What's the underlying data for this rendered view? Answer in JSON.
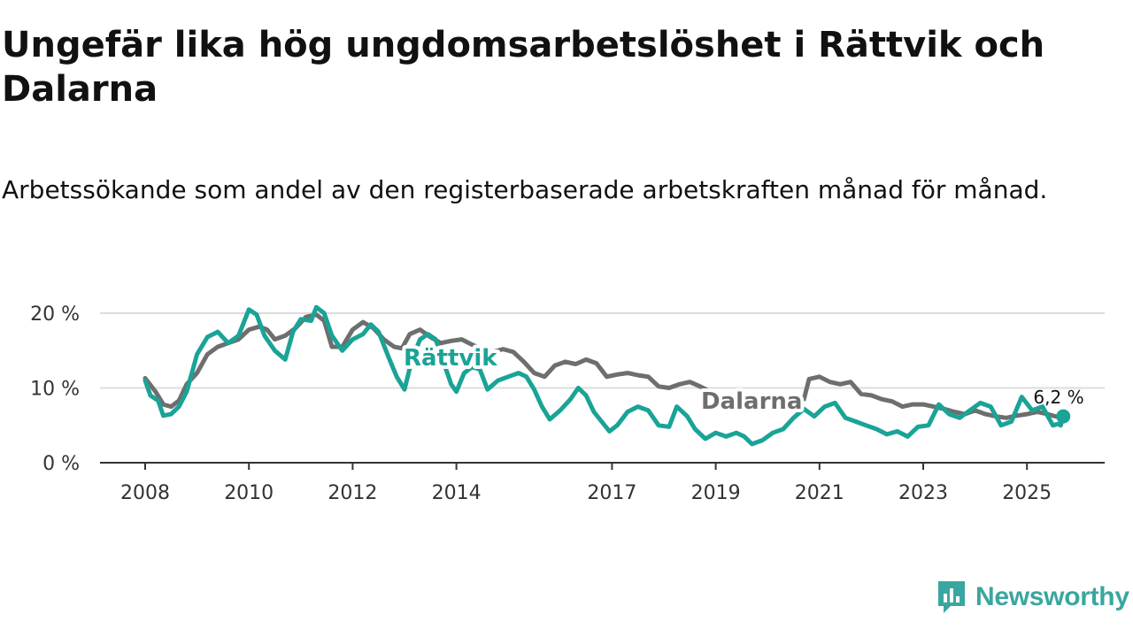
{
  "title": "Ungefär lika hög ungdomsarbetslöshet i Rättvik och Dalarna",
  "subtitle": "Arbetssökande som andel av den registerbaserade arbetskraften månad för månad.",
  "brand": {
    "name": "Newsworthy"
  },
  "colors": {
    "rattvik": "#1aa397",
    "dalarna": "#6e6e6e",
    "grid": "#dddddd",
    "axis": "#333333"
  },
  "chart_data": {
    "type": "line",
    "x_unit": "year",
    "xlim": [
      2008,
      2026.5
    ],
    "ylim": [
      0,
      20
    ],
    "y_ticks": [
      {
        "value": 0,
        "label": "0 %"
      },
      {
        "value": 10,
        "label": "10 %"
      },
      {
        "value": 20,
        "label": "20 %"
      }
    ],
    "x_ticks": [
      {
        "value": 2008,
        "label": "2008"
      },
      {
        "value": 2010,
        "label": "2010"
      },
      {
        "value": 2012,
        "label": "2012"
      },
      {
        "value": 2014,
        "label": "2014"
      },
      {
        "value": 2017,
        "label": "2017"
      },
      {
        "value": 2019,
        "label": "2019"
      },
      {
        "value": 2021,
        "label": "2021"
      },
      {
        "value": 2023,
        "label": "2023"
      },
      {
        "value": 2025,
        "label": "2025"
      }
    ],
    "series": [
      {
        "name": "Dalarna",
        "label": "Dalarna",
        "label_at": [
          2010.9,
          8.7
        ],
        "points": [
          [
            2008.0,
            11.3
          ],
          [
            2008.2,
            9.5
          ],
          [
            2008.35,
            7.8
          ],
          [
            2008.5,
            7.5
          ],
          [
            2008.65,
            8.3
          ],
          [
            2008.8,
            10.5
          ],
          [
            2009.0,
            12.0
          ],
          [
            2009.2,
            14.5
          ],
          [
            2009.4,
            15.5
          ],
          [
            2009.6,
            16.0
          ],
          [
            2009.8,
            16.5
          ],
          [
            2010.0,
            17.8
          ],
          [
            2010.2,
            18.2
          ],
          [
            2010.35,
            17.8
          ],
          [
            2010.5,
            16.5
          ],
          [
            2010.7,
            17.0
          ],
          [
            2010.9,
            18.0
          ],
          [
            2011.1,
            19.5
          ],
          [
            2011.3,
            19.8
          ],
          [
            2011.45,
            19.0
          ],
          [
            2011.6,
            15.5
          ],
          [
            2011.8,
            15.5
          ],
          [
            2012.0,
            17.8
          ],
          [
            2012.2,
            18.8
          ],
          [
            2012.4,
            18.0
          ],
          [
            2012.6,
            16.5
          ],
          [
            2012.8,
            15.5
          ],
          [
            2012.95,
            15.3
          ],
          [
            2013.1,
            17.2
          ],
          [
            2013.3,
            17.8
          ],
          [
            2013.5,
            16.8
          ],
          [
            2013.7,
            16.0
          ],
          [
            2013.9,
            16.3
          ],
          [
            2014.1,
            16.5
          ],
          [
            2014.3,
            15.8
          ],
          [
            2014.5,
            15.2
          ],
          [
            2014.7,
            14.8
          ],
          [
            2014.9,
            15.2
          ],
          [
            2015.1,
            14.8
          ],
          [
            2015.3,
            13.5
          ],
          [
            2015.5,
            12.0
          ],
          [
            2015.7,
            11.5
          ],
          [
            2015.9,
            13.0
          ],
          [
            2016.1,
            13.5
          ],
          [
            2016.3,
            13.2
          ],
          [
            2016.5,
            13.8
          ],
          [
            2016.7,
            13.3
          ],
          [
            2016.9,
            11.5
          ],
          [
            2017.1,
            11.8
          ],
          [
            2017.3,
            12.0
          ],
          [
            2017.5,
            11.7
          ],
          [
            2017.7,
            11.5
          ],
          [
            2017.9,
            10.2
          ],
          [
            2018.1,
            10.0
          ],
          [
            2018.3,
            10.5
          ],
          [
            2018.5,
            10.8
          ],
          [
            2018.7,
            10.2
          ],
          [
            2018.9,
            9.5
          ],
          [
            2019.1,
            8.0
          ],
          [
            2019.3,
            8.2
          ],
          [
            2019.5,
            8.3
          ],
          [
            2019.7,
            8.0
          ],
          [
            2019.9,
            8.2
          ],
          [
            2020.1,
            8.5
          ],
          [
            2020.3,
            8.2
          ],
          [
            2020.5,
            8.5
          ],
          [
            2020.7,
            8.5
          ],
          [
            2020.8,
            11.2
          ],
          [
            2021.0,
            11.5
          ],
          [
            2021.2,
            10.8
          ],
          [
            2021.4,
            10.5
          ],
          [
            2021.6,
            10.8
          ],
          [
            2021.8,
            9.2
          ],
          [
            2022.0,
            9.0
          ],
          [
            2022.2,
            8.5
          ],
          [
            2022.4,
            8.2
          ],
          [
            2022.6,
            7.5
          ],
          [
            2022.8,
            7.8
          ],
          [
            2023.0,
            7.8
          ],
          [
            2023.2,
            7.5
          ],
          [
            2023.4,
            7.2
          ],
          [
            2023.6,
            6.8
          ],
          [
            2023.8,
            6.5
          ],
          [
            2024.0,
            7.0
          ],
          [
            2024.2,
            6.5
          ],
          [
            2024.4,
            6.2
          ],
          [
            2024.6,
            6.0
          ],
          [
            2024.8,
            6.3
          ],
          [
            2025.0,
            6.5
          ],
          [
            2025.2,
            6.8
          ],
          [
            2025.4,
            6.5
          ],
          [
            2025.55,
            6.2
          ],
          [
            2025.7,
            6.0
          ]
        ]
      },
      {
        "name": "Rättvik",
        "label": "Rättvik",
        "label_at": [
          2005.0,
          13.5
        ],
        "last_value_label": "6,2 %",
        "points": [
          [
            2008.0,
            11.0
          ],
          [
            2008.1,
            9.0
          ],
          [
            2008.25,
            8.3
          ],
          [
            2008.35,
            6.3
          ],
          [
            2008.5,
            6.5
          ],
          [
            2008.65,
            7.5
          ],
          [
            2008.8,
            9.5
          ],
          [
            2009.0,
            14.5
          ],
          [
            2009.2,
            16.8
          ],
          [
            2009.4,
            17.5
          ],
          [
            2009.6,
            16.0
          ],
          [
            2009.8,
            17.0
          ],
          [
            2010.0,
            20.5
          ],
          [
            2010.15,
            19.8
          ],
          [
            2010.3,
            17.0
          ],
          [
            2010.5,
            15.0
          ],
          [
            2010.7,
            13.8
          ],
          [
            2010.85,
            17.5
          ],
          [
            2011.0,
            19.2
          ],
          [
            2011.2,
            19.0
          ],
          [
            2011.3,
            20.8
          ],
          [
            2011.45,
            20.0
          ],
          [
            2011.6,
            17.0
          ],
          [
            2011.8,
            15.0
          ],
          [
            2012.0,
            16.5
          ],
          [
            2012.2,
            17.2
          ],
          [
            2012.35,
            18.5
          ],
          [
            2012.5,
            17.5
          ],
          [
            2012.7,
            14.0
          ],
          [
            2012.85,
            11.5
          ],
          [
            2013.0,
            9.8
          ],
          [
            2013.15,
            14.0
          ],
          [
            2013.3,
            16.5
          ],
          [
            2013.45,
            17.2
          ],
          [
            2013.6,
            16.5
          ],
          [
            2013.75,
            13.5
          ],
          [
            2013.9,
            10.5
          ],
          [
            2014.0,
            9.5
          ],
          [
            2014.15,
            12.0
          ],
          [
            2014.3,
            12.8
          ],
          [
            2014.45,
            12.5
          ],
          [
            2014.6,
            9.8
          ],
          [
            2014.8,
            11.0
          ],
          [
            2015.0,
            11.5
          ],
          [
            2015.2,
            12.0
          ],
          [
            2015.35,
            11.5
          ],
          [
            2015.5,
            9.8
          ],
          [
            2015.65,
            7.5
          ],
          [
            2015.8,
            5.8
          ],
          [
            2016.0,
            7.0
          ],
          [
            2016.2,
            8.5
          ],
          [
            2016.35,
            10.0
          ],
          [
            2016.5,
            9.0
          ],
          [
            2016.65,
            6.8
          ],
          [
            2016.8,
            5.5
          ],
          [
            2016.95,
            4.2
          ],
          [
            2017.1,
            5.0
          ],
          [
            2017.3,
            6.8
          ],
          [
            2017.5,
            7.5
          ],
          [
            2017.7,
            7.0
          ],
          [
            2017.9,
            5.0
          ],
          [
            2018.1,
            4.8
          ],
          [
            2018.25,
            7.5
          ],
          [
            2018.45,
            6.2
          ],
          [
            2018.6,
            4.5
          ],
          [
            2018.8,
            3.2
          ],
          [
            2019.0,
            4.0
          ],
          [
            2019.2,
            3.5
          ],
          [
            2019.4,
            4.0
          ],
          [
            2019.55,
            3.5
          ],
          [
            2019.7,
            2.5
          ],
          [
            2019.9,
            3.0
          ],
          [
            2020.1,
            4.0
          ],
          [
            2020.3,
            4.5
          ],
          [
            2020.5,
            6.0
          ],
          [
            2020.7,
            7.2
          ],
          [
            2020.9,
            6.2
          ],
          [
            2021.1,
            7.5
          ],
          [
            2021.3,
            8.0
          ],
          [
            2021.5,
            6.0
          ],
          [
            2021.7,
            5.5
          ],
          [
            2021.9,
            5.0
          ],
          [
            2022.1,
            4.5
          ],
          [
            2022.3,
            3.8
          ],
          [
            2022.5,
            4.2
          ],
          [
            2022.7,
            3.5
          ],
          [
            2022.9,
            4.8
          ],
          [
            2023.1,
            5.0
          ],
          [
            2023.3,
            7.8
          ],
          [
            2023.5,
            6.5
          ],
          [
            2023.7,
            6.0
          ],
          [
            2023.9,
            7.0
          ],
          [
            2024.1,
            8.0
          ],
          [
            2024.3,
            7.5
          ],
          [
            2024.5,
            5.0
          ],
          [
            2024.7,
            5.5
          ],
          [
            2024.9,
            8.8
          ],
          [
            2025.1,
            7.0
          ],
          [
            2025.3,
            7.5
          ],
          [
            2025.5,
            5.0
          ],
          [
            2025.6,
            5.2
          ],
          [
            2025.65,
            5.0
          ],
          [
            2025.7,
            6.2
          ]
        ]
      }
    ]
  }
}
